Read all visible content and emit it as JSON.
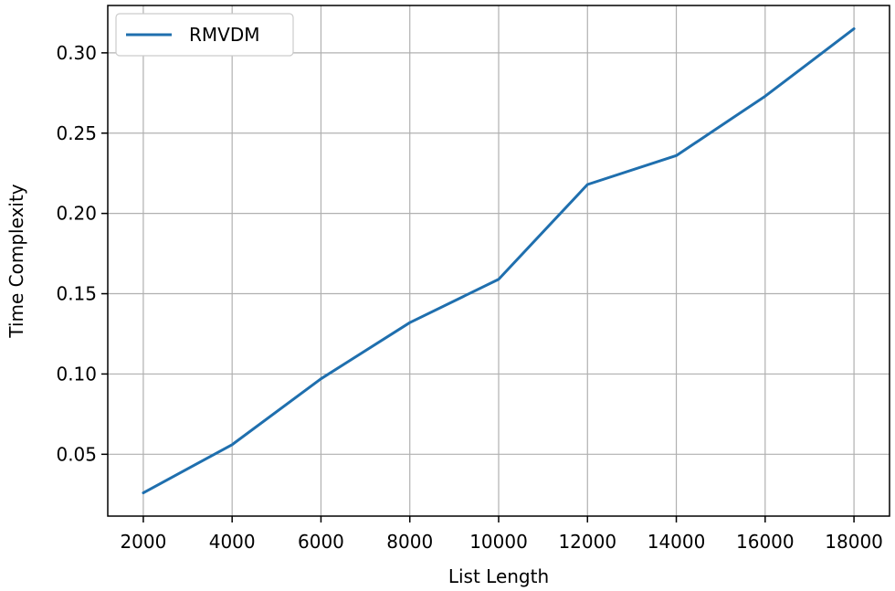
{
  "chart_data": {
    "type": "line",
    "title": "",
    "xlabel": "List Length",
    "ylabel": "Time Complexity",
    "x": [
      2000,
      4000,
      6000,
      8000,
      10000,
      12000,
      14000,
      16000,
      18000
    ],
    "series": [
      {
        "name": "RMVDM",
        "color": "#1f6fae",
        "values": [
          0.026,
          0.056,
          0.097,
          0.132,
          0.159,
          0.218,
          0.236,
          0.273,
          0.315
        ]
      }
    ],
    "xticks": [
      2000,
      4000,
      6000,
      8000,
      10000,
      12000,
      14000,
      16000,
      18000
    ],
    "xtick_labels": [
      "2000",
      "4000",
      "6000",
      "8000",
      "10000",
      "12000",
      "14000",
      "16000",
      "18000"
    ],
    "yticks": [
      0.05,
      0.1,
      0.15,
      0.2,
      0.25,
      0.3
    ],
    "ytick_labels": [
      "0.05",
      "0.10",
      "0.15",
      "0.20",
      "0.25",
      "0.30"
    ],
    "xlim": [
      1200,
      18800
    ],
    "ylim": [
      0.0115,
      0.3295
    ],
    "grid": true,
    "legend_position": "top-left"
  }
}
